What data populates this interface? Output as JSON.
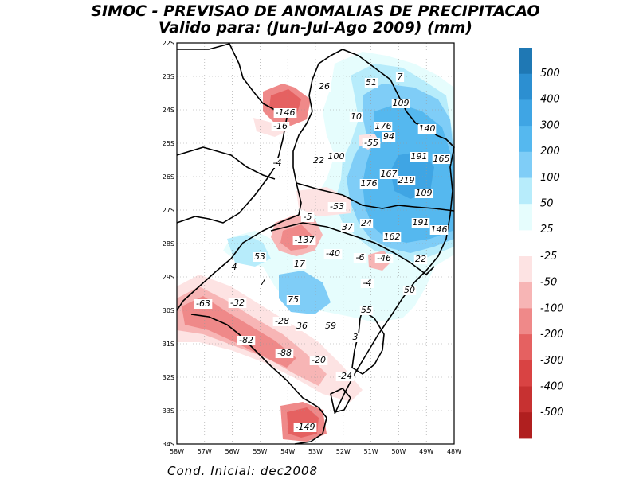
{
  "title_line1": "SIMOC - PREVISAO DE ANOMALIAS DE PRECIPITACAO",
  "title_line2": "Valido para: (Jun-Jul-Ago 2009) (mm)",
  "footer": "Cond. Inicial: dec2008",
  "lat_ticks": [
    "22S",
    "23S",
    "24S",
    "25S",
    "26S",
    "27S",
    "28S",
    "29S",
    "30S",
    "31S",
    "32S",
    "33S",
    "34S"
  ],
  "lon_ticks": [
    "58W",
    "57W",
    "56W",
    "55W",
    "54W",
    "53W",
    "52W",
    "51W",
    "50W",
    "49W",
    "48W"
  ],
  "colorbar": {
    "positive_labels": [
      "500",
      "400",
      "300",
      "200",
      "100",
      "50",
      "25"
    ],
    "negative_labels": [
      "-25",
      "-50",
      "-100",
      "-200",
      "-300",
      "-400",
      "-500"
    ],
    "positive_colors": [
      "#1f78b4",
      "#2c8fd1",
      "#3fa5e4",
      "#55b8ef",
      "#7fcdf7",
      "#b7ecfb",
      "#e6fdfd"
    ],
    "negative_colors": [
      "#fde3e3",
      "#f7b5b5",
      "#ef8989",
      "#e56161",
      "#d94343",
      "#c73131",
      "#b01f1f"
    ]
  },
  "map_values": [
    {
      "text": "26"
    },
    {
      "text": "51"
    },
    {
      "text": "7"
    },
    {
      "text": "109"
    },
    {
      "text": "-146"
    },
    {
      "text": "10"
    },
    {
      "text": "176"
    },
    {
      "text": "140"
    },
    {
      "text": "-16"
    },
    {
      "text": "94"
    },
    {
      "text": "-55"
    },
    {
      "text": "100"
    },
    {
      "text": "191"
    },
    {
      "text": "165"
    },
    {
      "text": "-4"
    },
    {
      "text": "22"
    },
    {
      "text": "167"
    },
    {
      "text": "219"
    },
    {
      "text": "176"
    },
    {
      "text": "109"
    },
    {
      "text": "-53"
    },
    {
      "text": "-5"
    },
    {
      "text": "24"
    },
    {
      "text": "191"
    },
    {
      "text": "37"
    },
    {
      "text": "146"
    },
    {
      "text": "162"
    },
    {
      "text": "-137"
    },
    {
      "text": "-40"
    },
    {
      "text": "-6"
    },
    {
      "text": "-46"
    },
    {
      "text": "53"
    },
    {
      "text": "22"
    },
    {
      "text": "4"
    },
    {
      "text": "17"
    },
    {
      "text": "7"
    },
    {
      "text": "-4"
    },
    {
      "text": "50"
    },
    {
      "text": "75"
    },
    {
      "text": "-63"
    },
    {
      "text": "-32"
    },
    {
      "text": "55"
    },
    {
      "text": "-28"
    },
    {
      "text": "36"
    },
    {
      "text": "59"
    },
    {
      "text": "3"
    },
    {
      "text": "-82"
    },
    {
      "text": "-88"
    },
    {
      "text": "-20"
    },
    {
      "text": "-24"
    },
    {
      "text": "-149"
    }
  ]
}
